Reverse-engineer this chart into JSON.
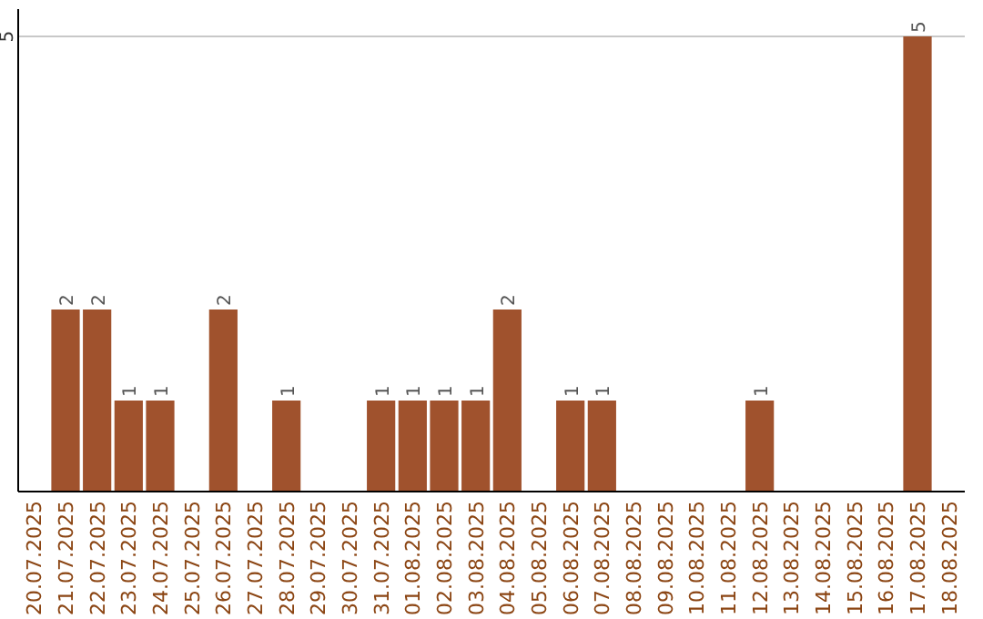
{
  "chart_data": {
    "type": "bar",
    "categories": [
      "20.07.2025",
      "21.07.2025",
      "22.07.2025",
      "23.07.2025",
      "24.07.2025",
      "25.07.2025",
      "26.07.2025",
      "27.07.2025",
      "28.07.2025",
      "29.07.2025",
      "30.07.2025",
      "31.07.2025",
      "01.08.2025",
      "02.08.2025",
      "03.08.2025",
      "04.08.2025",
      "05.08.2025",
      "06.08.2025",
      "07.08.2025",
      "08.08.2025",
      "09.08.2025",
      "10.08.2025",
      "11.08.2025",
      "12.08.2025",
      "13.08.2025",
      "14.08.2025",
      "15.08.2025",
      "16.08.2025",
      "17.08.2025",
      "18.08.2025"
    ],
    "values": [
      0,
      2,
      2,
      1,
      1,
      0,
      2,
      0,
      1,
      0,
      0,
      1,
      1,
      1,
      1,
      2,
      0,
      1,
      1,
      0,
      0,
      0,
      0,
      1,
      0,
      0,
      0,
      0,
      5,
      0
    ],
    "value_labels": [
      null,
      "2",
      "2",
      "1",
      "1",
      null,
      "2",
      null,
      "1",
      null,
      null,
      "1",
      "1",
      "1",
      "1",
      "2",
      null,
      "1",
      "1",
      null,
      null,
      null,
      null,
      "1",
      null,
      null,
      null,
      null,
      "5",
      null
    ],
    "color": "#a0522d",
    "ylim": [
      0,
      5
    ],
    "yticks": [
      5
    ],
    "ref_lines": [
      {
        "axis": "y",
        "value": 5,
        "color": "#c8c8c8"
      }
    ]
  }
}
